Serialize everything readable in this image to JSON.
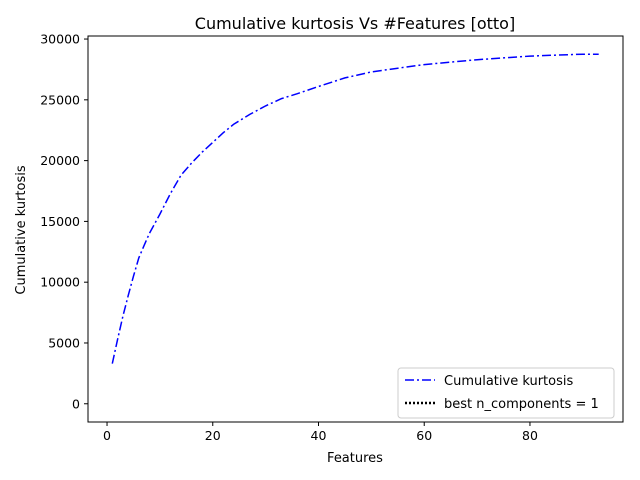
{
  "chart_data": {
    "type": "line",
    "title": "Cumulative kurtosis Vs #Features [otto]",
    "xlabel": "Features",
    "ylabel": "Cumulative kurtosis",
    "xlim": [
      -3.6,
      97.6
    ],
    "ylim": [
      -1500,
      30250
    ],
    "xticks": [
      0,
      20,
      40,
      60,
      80
    ],
    "yticks": [
      0,
      5000,
      10000,
      15000,
      20000,
      25000,
      30000
    ],
    "grid": false,
    "legend_position": "lower-right",
    "series": [
      {
        "name": "Cumulative kurtosis",
        "color": "#0000ff",
        "style": "dash-dot",
        "x": [
          1,
          2,
          3,
          4,
          5,
          6,
          7,
          8,
          10,
          12,
          14,
          16,
          18,
          20,
          22,
          24,
          27,
          30,
          33,
          36,
          40,
          45,
          50,
          55,
          60,
          65,
          70,
          75,
          80,
          85,
          90,
          93
        ],
        "y": [
          3300,
          5300,
          7200,
          8900,
          10500,
          12000,
          13000,
          14000,
          15600,
          17300,
          18800,
          19800,
          20700,
          21500,
          22300,
          23000,
          23800,
          24500,
          25100,
          25500,
          26100,
          26800,
          27300,
          27600,
          27900,
          28100,
          28300,
          28450,
          28600,
          28680,
          28750,
          28750
        ]
      },
      {
        "name": "best n_components = 1",
        "color": "#000000",
        "style": "dotted",
        "x": [],
        "y": []
      }
    ]
  }
}
